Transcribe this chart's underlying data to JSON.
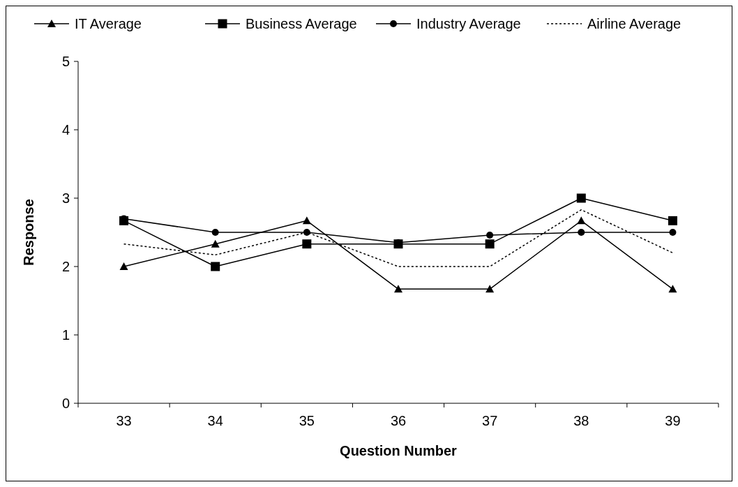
{
  "chart_data": {
    "type": "line",
    "xlabel": "Question Number",
    "ylabel": "Response",
    "categories": [
      "33",
      "34",
      "35",
      "36",
      "37",
      "38",
      "39"
    ],
    "ylim": [
      0,
      5
    ],
    "yticks": [
      0,
      1,
      2,
      3,
      4,
      5
    ],
    "grid": false,
    "legend": "top",
    "series": [
      {
        "name": "IT Average",
        "color": "#000000",
        "marker": "triangle",
        "line_style": "solid",
        "values": [
          2.0,
          2.33,
          2.67,
          1.67,
          1.67,
          2.67,
          1.67
        ]
      },
      {
        "name": "Business Average",
        "color": "#000000",
        "marker": "square",
        "line_style": "solid",
        "values": [
          2.67,
          2.0,
          2.33,
          2.33,
          2.33,
          3.0,
          2.67
        ]
      },
      {
        "name": "Industry Average",
        "color": "#000000",
        "marker": "circle",
        "line_style": "solid",
        "values": [
          2.7,
          2.5,
          2.5,
          2.35,
          2.46,
          2.5,
          2.5
        ]
      },
      {
        "name": "Airline Average",
        "color": "#000000",
        "marker": "none",
        "line_style": "dotted",
        "values": [
          2.33,
          2.17,
          2.5,
          2.0,
          2.0,
          2.83,
          2.2
        ]
      }
    ]
  }
}
